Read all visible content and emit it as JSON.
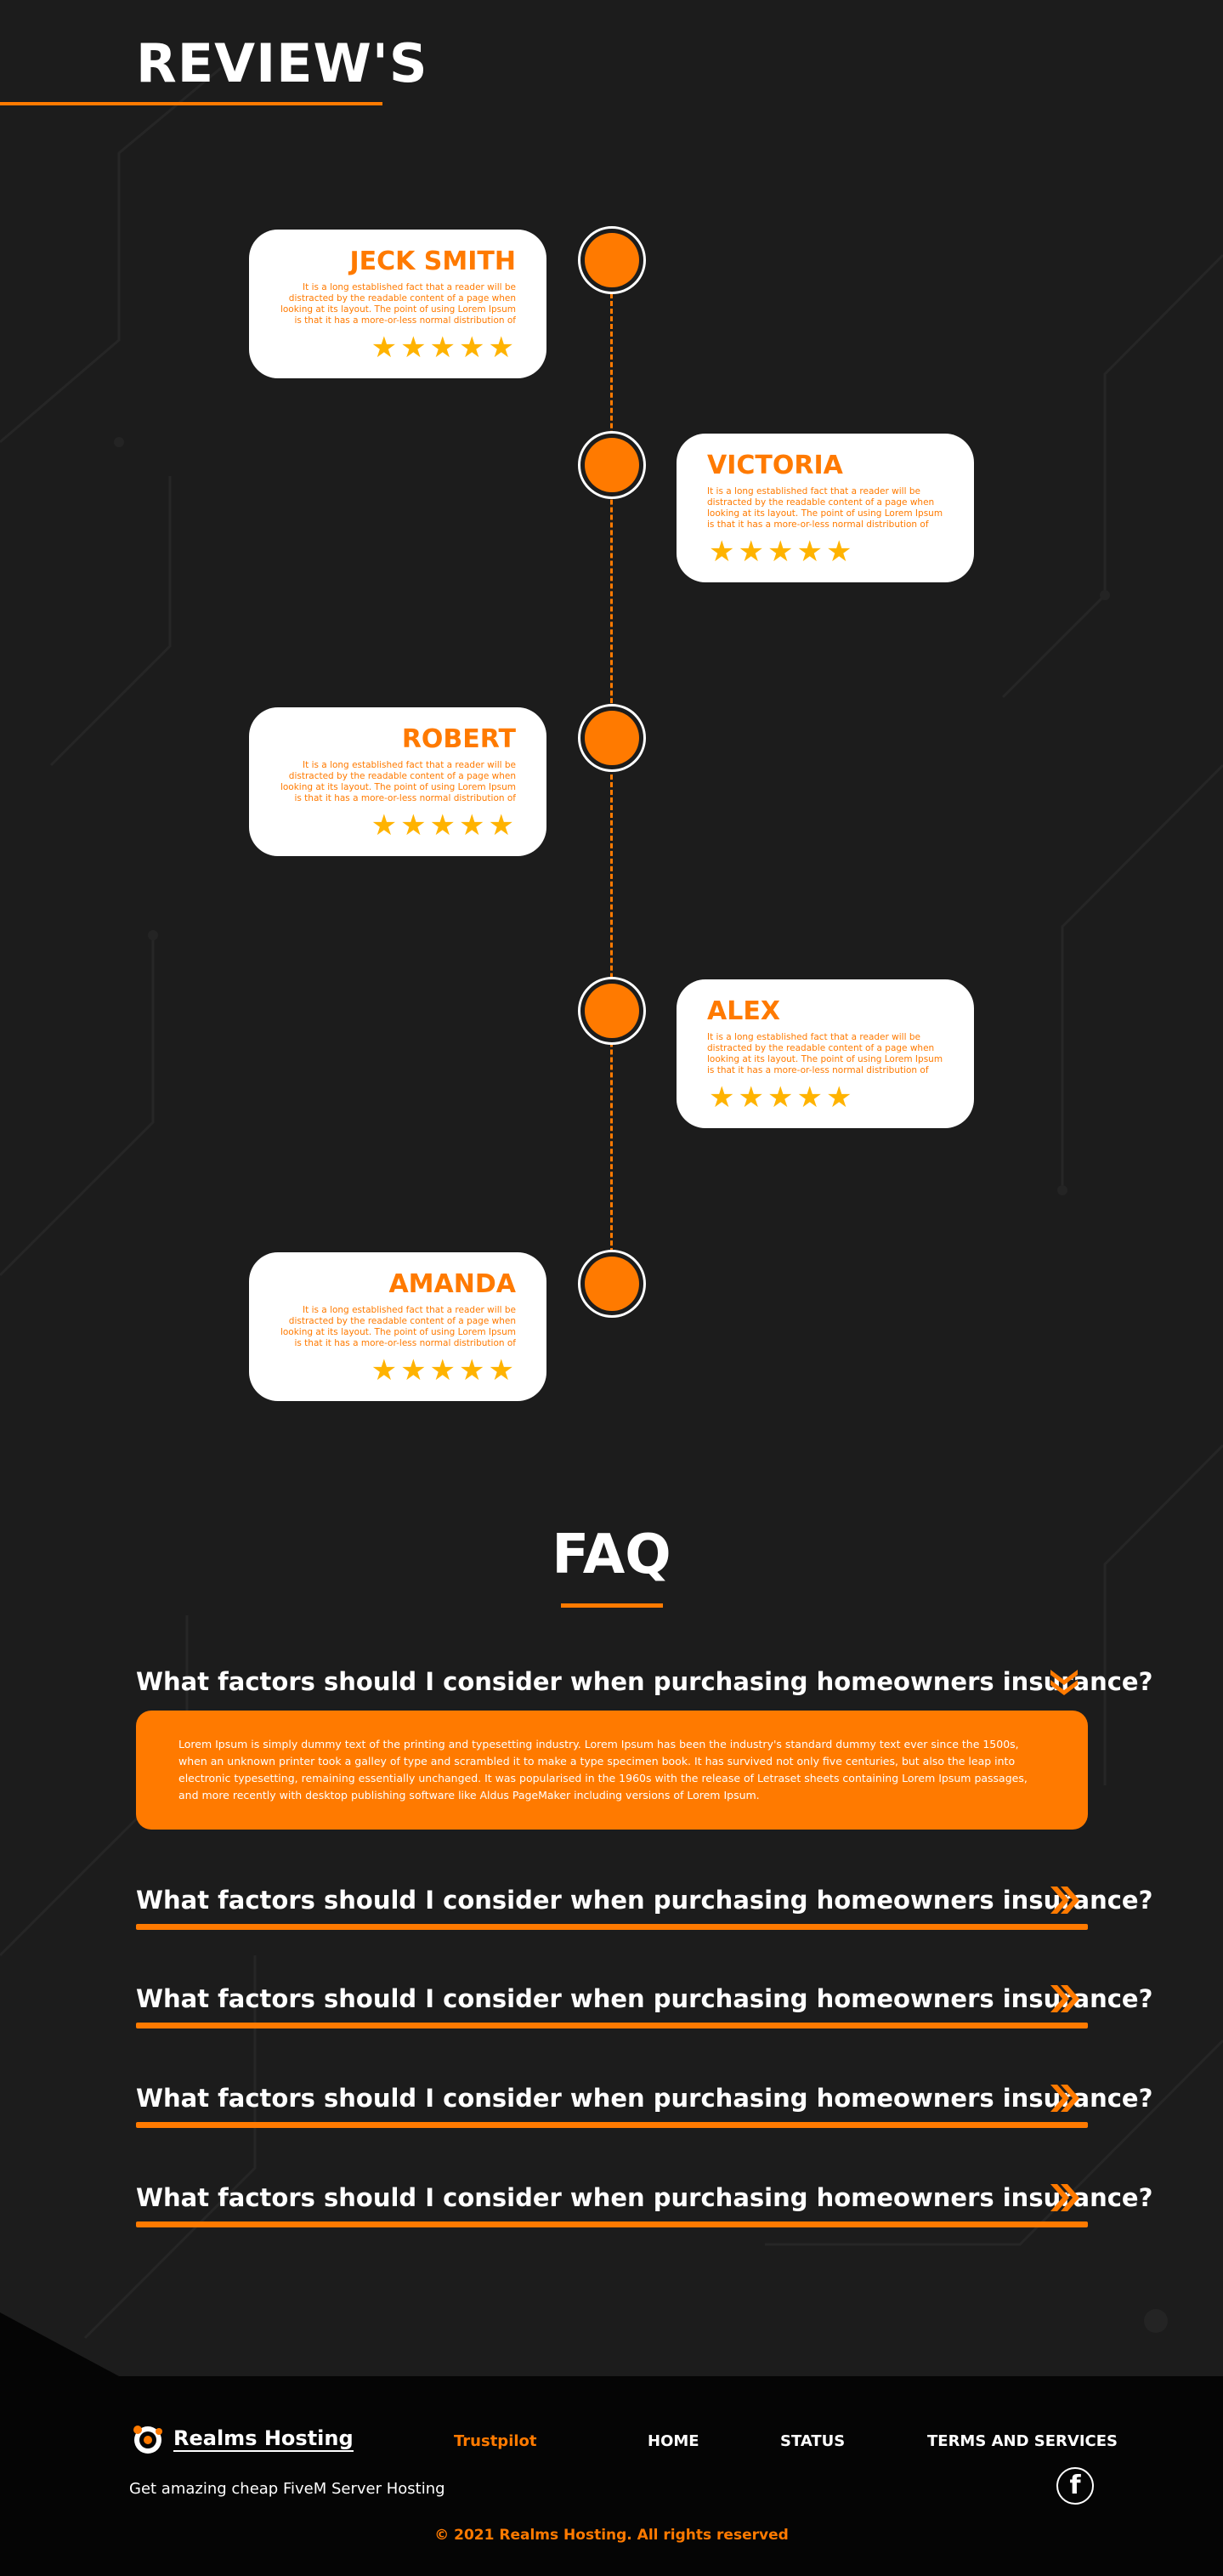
{
  "reviews": {
    "title": "REVIEW'S",
    "items": [
      {
        "name": "JECK SMITH",
        "text": "It is a long established fact that a reader will be distracted by the readable content of a page when looking at its layout. The point of using Lorem Ipsum is that it has a more-or-less normal distribution of",
        "rating": 5,
        "side": "left"
      },
      {
        "name": "VICTORIA",
        "text": "It is a long established fact that a reader will be distracted by the readable content of a page when looking at its layout. The point of using Lorem Ipsum is that it has a more-or-less normal distribution of",
        "rating": 5,
        "side": "right"
      },
      {
        "name": "ROBERT",
        "text": "It is a long established fact that a reader will be distracted by the readable content of a page when looking at its layout. The point of using Lorem Ipsum is that it has a more-or-less normal distribution of",
        "rating": 5,
        "side": "left"
      },
      {
        "name": "ALEX",
        "text": "It is a long established fact that a reader will be distracted by the readable content of a page when looking at its layout. The point of using Lorem Ipsum is that it has a more-or-less normal distribution of",
        "rating": 5,
        "side": "right"
      },
      {
        "name": "AMANDA",
        "text": "It is a long established fact that a reader will be distracted by the readable content of a page when looking at its layout. The point of using Lorem Ipsum is that it has a more-or-less normal distribution of",
        "rating": 5,
        "side": "left"
      }
    ]
  },
  "faq": {
    "title": "FAQ",
    "items": [
      {
        "question": "What factors should I consider when purchasing homeowners insurance?",
        "expanded": true,
        "icon": "double-chevron-down-icon",
        "answer": "Lorem Ipsum is simply dummy text of the printing and typesetting industry. Lorem Ipsum has been the industry's standard dummy text ever since the 1500s, when an unknown printer took a galley of type and scrambled it to make a type specimen book. It has survived not only five centuries, but also the leap into electronic typesetting, remaining essentially unchanged. It was popularised in the 1960s with the release of Letraset sheets containing Lorem Ipsum passages, and more recently with desktop publishing software like Aldus PageMaker including versions of Lorem Ipsum."
      },
      {
        "question": "What factors should I consider when purchasing homeowners insurance?",
        "expanded": false,
        "icon": "double-chevron-right-icon"
      },
      {
        "question": "What factors should I consider when purchasing homeowners insurance?",
        "expanded": false,
        "icon": "double-chevron-right-icon"
      },
      {
        "question": "What factors should I consider when purchasing homeowners insurance?",
        "expanded": false,
        "icon": "double-chevron-right-icon"
      },
      {
        "question": "What factors should I consider when purchasing homeowners insurance?",
        "expanded": false,
        "icon": "double-chevron-right-icon"
      }
    ]
  },
  "footer": {
    "logo_text": "Realms Hosting",
    "tagline": "Get amazing cheap FiveM Server Hosting",
    "links": {
      "trustpilot": "Trustpilot",
      "home": "HOME",
      "status": "STATUS",
      "terms": "TERMS AND SERVICES"
    },
    "social_icon": "facebook-icon",
    "copyright": "© 2021 Realms Hosting. All rights reserved"
  },
  "colors": {
    "accent": "#ff7a00",
    "star": "#ffb300",
    "background": "#1c1c1c"
  }
}
